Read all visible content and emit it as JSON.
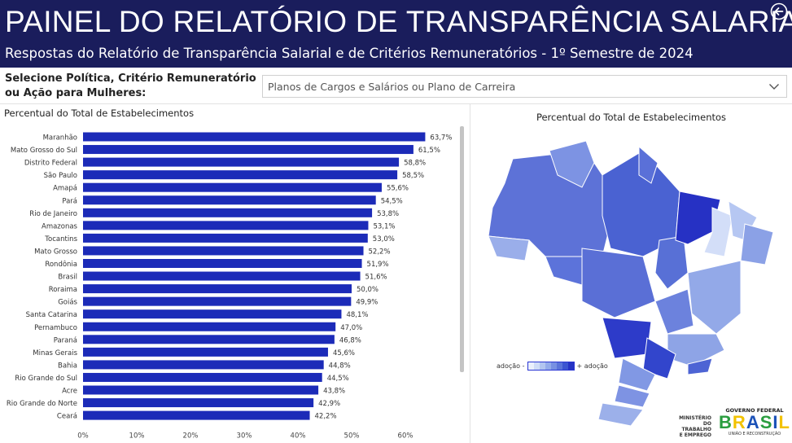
{
  "header": {
    "title": "PAINEL DO RELATÓRIO DE TRANSPARÊNCIA SALARIAL",
    "subtitle": "Respostas do Relatório de Transparência Salarial e de Critérios Remuneratórios - 1º Semestre de 2024"
  },
  "filter": {
    "label": "Selecione Política, Critério Remuneratório ou Ação para Mulheres:",
    "selected": "Planos de Cargos e Salários ou Plano de Carreira"
  },
  "map": {
    "title": "Percentual do Total de Estabelecimentos",
    "legend_low": "adoção -",
    "legend_high": "+ adoção",
    "legend_colors": [
      "#eaf0fc",
      "#cfdcf7",
      "#b2c5f0",
      "#93abea",
      "#7790e2",
      "#5a74d9",
      "#3c55d1",
      "#2533c4"
    ]
  },
  "branding": {
    "ministry": [
      "MINISTÉRIO",
      "DO",
      "TRABALHO",
      "E EMPREGO"
    ],
    "gov_top": "GOVERNO FEDERAL",
    "gov_word": "BRASIL",
    "gov_bottom": "UNIÃO E RECONSTRUÇÃO"
  },
  "colors": {
    "header_bg": "#1a1d5c",
    "bar": "#1c2bb8"
  },
  "chart_data": {
    "type": "bar",
    "orientation": "horizontal",
    "title": "Percentual do Total de Estabelecimentos",
    "categories": [
      "Maranhão",
      "Mato Grosso do Sul",
      "Distrito Federal",
      "São Paulo",
      "Amapá",
      "Pará",
      "Rio de Janeiro",
      "Amazonas",
      "Tocantins",
      "Mato Grosso",
      "Rondônia",
      "Brasil",
      "Roraima",
      "Goiás",
      "Santa Catarina",
      "Pernambuco",
      "Paraná",
      "Minas Gerais",
      "Bahia",
      "Rio Grande do Sul",
      "Acre",
      "Rio Grande do Norte",
      "Ceará"
    ],
    "values": [
      63.7,
      61.5,
      58.8,
      58.5,
      55.6,
      54.5,
      53.8,
      53.1,
      53.0,
      52.2,
      51.9,
      51.6,
      50.0,
      49.9,
      48.1,
      47.0,
      46.8,
      45.6,
      44.8,
      44.5,
      43.8,
      42.9,
      42.2
    ],
    "labels": [
      "63,7%",
      "61,5%",
      "58,8%",
      "58,5%",
      "55,6%",
      "54,5%",
      "53,8%",
      "53,1%",
      "53,0%",
      "52,2%",
      "51,9%",
      "51,6%",
      "50,0%",
      "49,9%",
      "48,1%",
      "47,0%",
      "46,8%",
      "45,6%",
      "44,8%",
      "44,5%",
      "43,8%",
      "42,9%",
      "42,2%"
    ],
    "xticks": [
      0,
      10,
      20,
      30,
      40,
      50,
      60
    ],
    "xtick_labels": [
      "0%",
      "10%",
      "20%",
      "30%",
      "40%",
      "50%",
      "60%"
    ],
    "xlim": [
      0,
      70
    ],
    "grid": false
  }
}
